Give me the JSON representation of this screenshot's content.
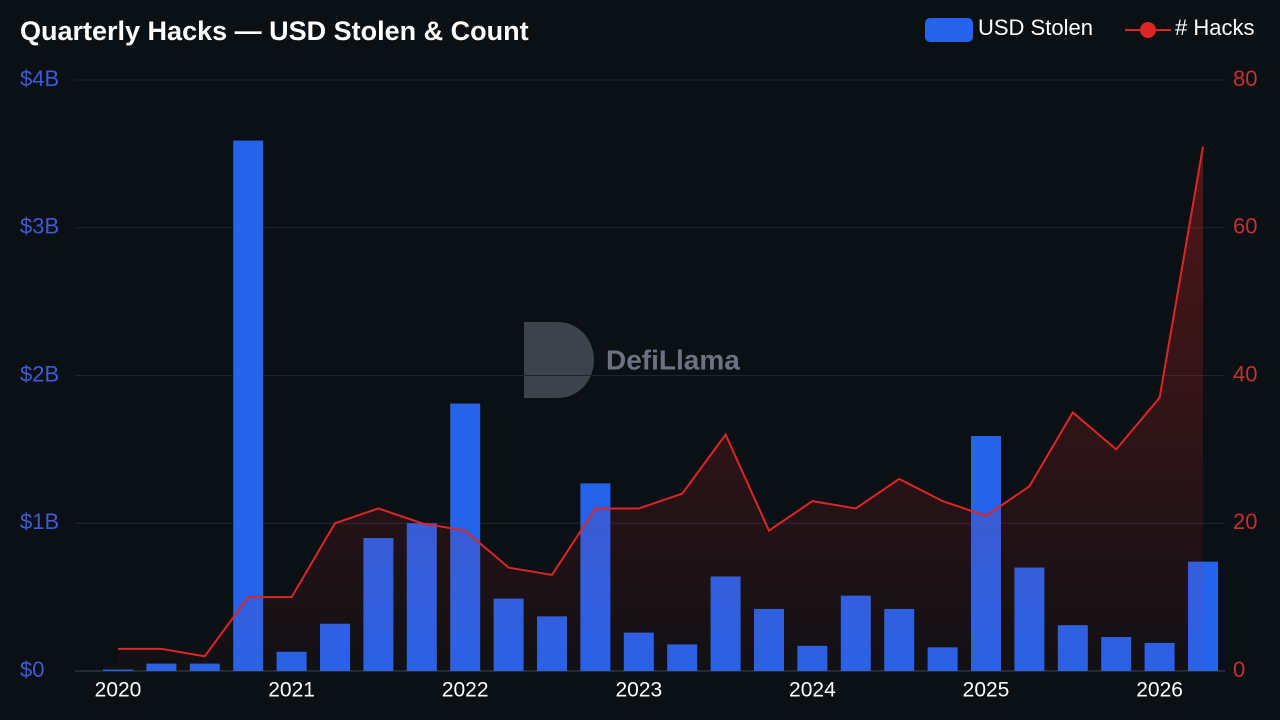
{
  "chart_data": {
    "type": "bar-line",
    "title": "Quarterly Hacks — USD Stolen & Count",
    "watermark": "DefiLlama",
    "categories": [
      "2020",
      null,
      null,
      null,
      "2021",
      null,
      null,
      null,
      "2022",
      null,
      null,
      null,
      "2023",
      null,
      null,
      null,
      "2024",
      null,
      null,
      null,
      "2025",
      null,
      null,
      null,
      "2026",
      null
    ],
    "series": [
      {
        "name": "USD Stolen",
        "type": "bar",
        "color": "#2563eb",
        "values": [
          10000000,
          50000000,
          50000000,
          3590000000,
          130000000,
          320000000,
          900000000,
          1000000000,
          1810000000,
          490000000,
          370000000,
          1270000000,
          260000000,
          180000000,
          640000000,
          420000000,
          170000000,
          510000000,
          420000000,
          160000000,
          1590000000,
          700000000,
          310000000,
          230000000,
          190000000,
          740000000
        ]
      },
      {
        "name": "# Hacks",
        "type": "line",
        "axis": "y2",
        "color": "#dc2626",
        "values": [
          3,
          3,
          2,
          10,
          10,
          20,
          22,
          20,
          19,
          14,
          13,
          22,
          22,
          24,
          32,
          19,
          23,
          22,
          26,
          23,
          21,
          25,
          35,
          30,
          37,
          71
        ]
      }
    ],
    "ylim": [
      0,
      4000000000
    ],
    "yticks": [
      {
        "value": 0,
        "label": "$0"
      },
      {
        "value": 1000000000,
        "label": "$1B"
      },
      {
        "value": 2000000000,
        "label": "$2B"
      },
      {
        "value": 3000000000,
        "label": "$3B"
      },
      {
        "value": 4000000000,
        "label": "$4B"
      }
    ],
    "y2lim": [
      0,
      80
    ],
    "y2ticks": [
      0,
      20,
      40,
      60,
      80
    ],
    "grid": true,
    "legend": "top-right"
  }
}
